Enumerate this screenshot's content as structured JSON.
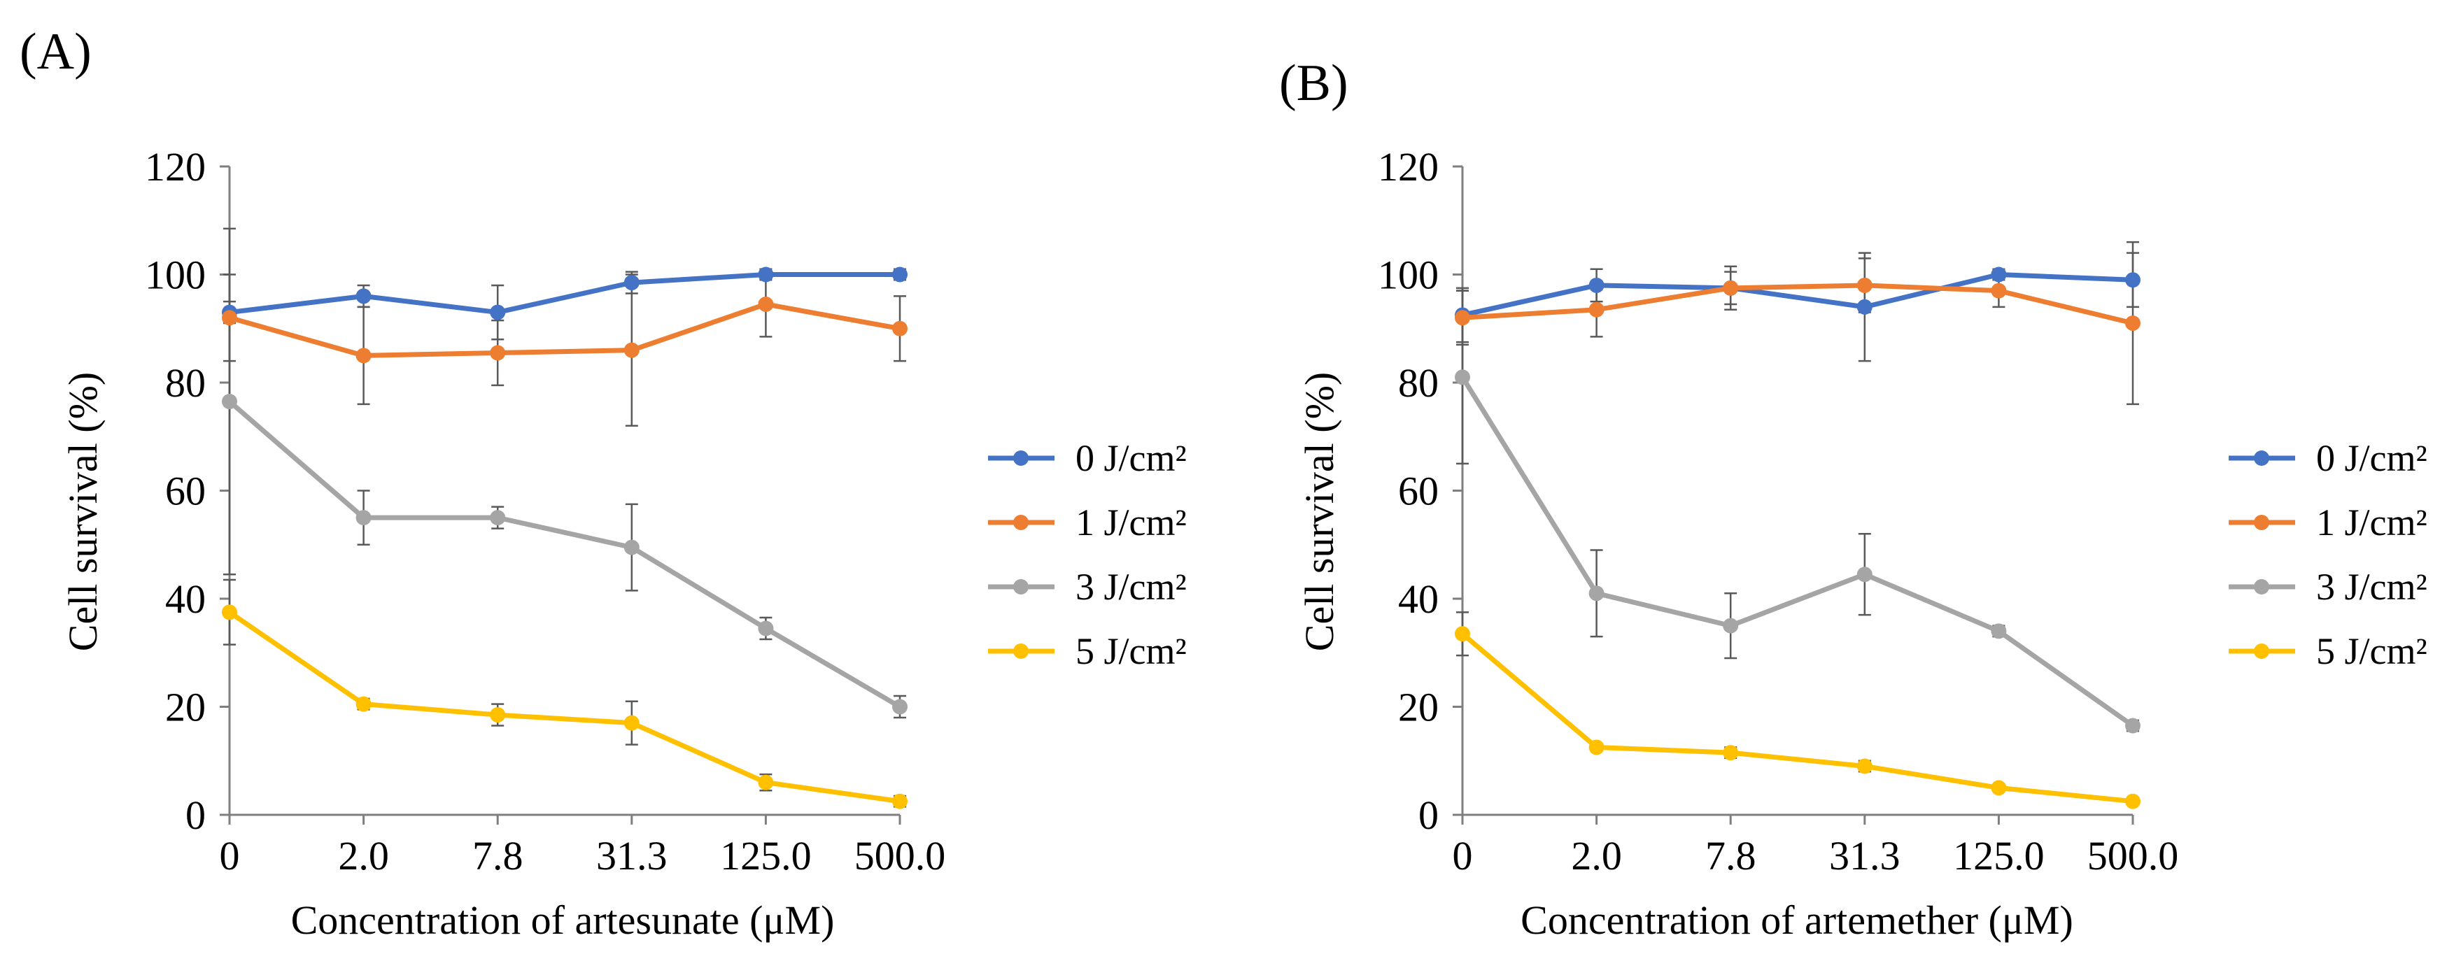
{
  "chart_data": [
    {
      "type": "line",
      "panel_label": "(A)",
      "title": "",
      "xlabel": "Concentration of artesunate (μM)",
      "ylabel": "Cell survival (%)",
      "categories": [
        "0",
        "2.0",
        "7.8",
        "31.3",
        "125.0",
        "500.0"
      ],
      "ylim": [
        0,
        120
      ],
      "yticks": [
        "0",
        "20",
        "40",
        "60",
        "80",
        "100",
        "120"
      ],
      "grid": false,
      "legend_position": "right",
      "series": [
        {
          "name": "0 J/cm²",
          "color": "#4472C4",
          "values": [
            93,
            96,
            93,
            98.5,
            100,
            100
          ],
          "errors": [
            2,
            2,
            5,
            2,
            1,
            1
          ]
        },
        {
          "name": "1 J/cm²",
          "color": "#ED7D31",
          "values": [
            92,
            85,
            85.5,
            86,
            94.5,
            90
          ],
          "errors": [
            8,
            9,
            6,
            14,
            6,
            6
          ]
        },
        {
          "name": "3 J/cm²",
          "color": "#A5A5A5",
          "values": [
            76.5,
            55,
            55,
            49.5,
            34.5,
            20
          ],
          "errors": [
            32,
            5,
            2,
            8,
            2,
            2
          ]
        },
        {
          "name": "5 J/cm²",
          "color": "#FFC000",
          "values": [
            37.5,
            20.5,
            18.5,
            17,
            6,
            2.5
          ],
          "errors": [
            6,
            1,
            2,
            4,
            1.5,
            1
          ]
        }
      ]
    },
    {
      "type": "line",
      "panel_label": "(B)",
      "title": "",
      "xlabel": "Concentration of artemether (μM)",
      "ylabel": "Cell survival (%)",
      "categories": [
        "0",
        "2.0",
        "7.8",
        "31.3",
        "125.0",
        "500.0"
      ],
      "ylim": [
        0,
        120
      ],
      "yticks": [
        "0",
        "20",
        "40",
        "60",
        "80",
        "100",
        "120"
      ],
      "grid": false,
      "legend_position": "right",
      "series": [
        {
          "name": "0 J/cm²",
          "color": "#4472C4",
          "values": [
            92.5,
            98,
            97.5,
            94,
            100,
            99
          ],
          "errors": [
            5,
            3,
            3,
            10,
            1,
            5
          ]
        },
        {
          "name": "1 J/cm²",
          "color": "#ED7D31",
          "values": [
            92,
            93.5,
            97.5,
            98,
            97,
            91
          ],
          "errors": [
            5,
            5,
            4,
            5,
            3,
            15
          ]
        },
        {
          "name": "3 J/cm²",
          "color": "#A5A5A5",
          "values": [
            81,
            41,
            35,
            44.5,
            34,
            16.5
          ],
          "errors": [
            16,
            8,
            6,
            7.5,
            1,
            1
          ]
        },
        {
          "name": "5 J/cm²",
          "color": "#FFC000",
          "values": [
            33.5,
            12.5,
            11.5,
            9,
            5,
            2.5
          ],
          "errors": [
            4,
            0.5,
            1,
            1,
            0.5,
            0.5
          ]
        }
      ]
    }
  ]
}
